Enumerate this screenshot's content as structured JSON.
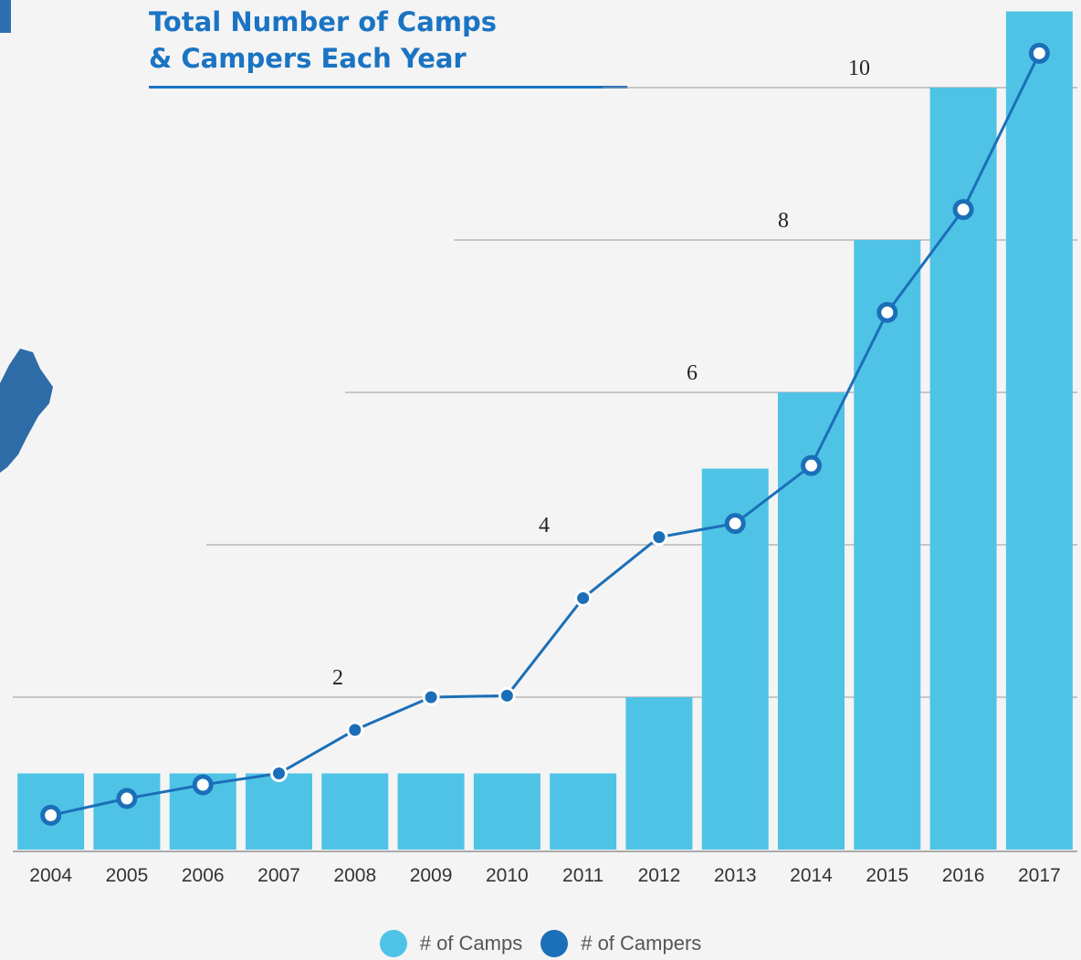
{
  "title": {
    "line1": "Total Number of Camps",
    "line2": "& Campers Each Year"
  },
  "colors": {
    "camps": "#4fc3e6",
    "campers": "#1b6fb8",
    "title": "#1b74c3",
    "grid": "#999999",
    "background": "#f4f4f4"
  },
  "chart_data": {
    "type": "bar",
    "categories": [
      "2004",
      "2005",
      "2006",
      "2007",
      "2008",
      "2009",
      "2010",
      "2011",
      "2012",
      "2013",
      "2014",
      "2015",
      "2016",
      "2017"
    ],
    "y_tick_labels": [
      "2",
      "4",
      "6",
      "8",
      "10"
    ],
    "ylim": [
      0,
      11
    ],
    "grid": true,
    "legend_position": "bottom",
    "series": [
      {
        "name": "# of Camps",
        "type": "bar",
        "color": "#4fc3e6",
        "values": [
          1,
          1,
          1,
          1,
          1,
          1,
          1,
          1,
          2,
          5,
          6,
          8,
          10,
          11
        ]
      },
      {
        "name": "# of Campers",
        "type": "line",
        "color": "#1b6fb8",
        "values": [
          0.45,
          0.67,
          0.85,
          1.0,
          1.57,
          2.0,
          2.02,
          3.3,
          4.1,
          4.28,
          5.04,
          7.05,
          8.4,
          10.45
        ]
      }
    ]
  },
  "legend": {
    "camps_label": "# of Camps",
    "campers_label": "# of Campers"
  }
}
